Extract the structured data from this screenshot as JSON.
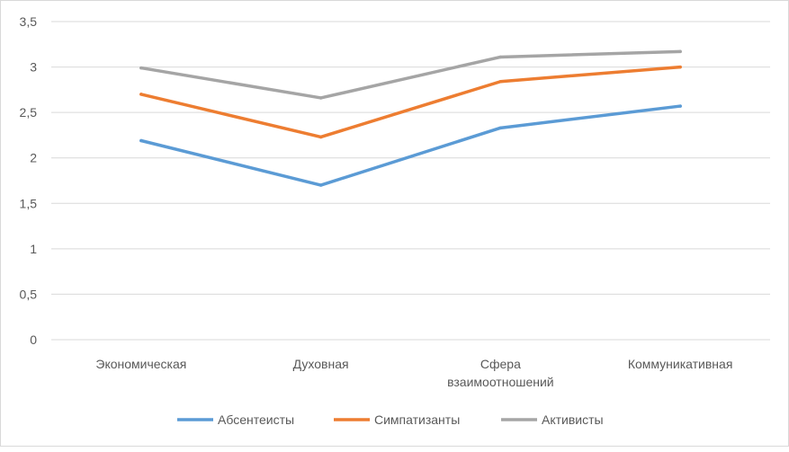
{
  "chart_data": {
    "type": "line",
    "title": "",
    "xlabel": "",
    "ylabel": "",
    "categories": [
      [
        "Экономическая"
      ],
      [
        "Духовная"
      ],
      [
        "Сфера",
        "взаимоотношений"
      ],
      [
        "Коммуникативная"
      ]
    ],
    "ylim": [
      0,
      3.5
    ],
    "yticks": [
      0,
      0.5,
      1,
      1.5,
      2,
      2.5,
      3,
      3.5
    ],
    "ytick_labels": [
      "0",
      "0,5",
      "1",
      "1,5",
      "2",
      "2,5",
      "3",
      "3,5"
    ],
    "grid": true,
    "legend_position": "bottom",
    "series": [
      {
        "name": "Абсентеисты",
        "color": "#5b9bd5",
        "values": [
          2.19,
          1.7,
          2.33,
          2.57
        ]
      },
      {
        "name": "Симпатизанты",
        "color": "#ed7d31",
        "values": [
          2.7,
          2.23,
          2.84,
          3.0
        ]
      },
      {
        "name": "Активисты",
        "color": "#a5a5a5",
        "values": [
          2.99,
          2.66,
          3.11,
          3.17
        ]
      }
    ]
  }
}
